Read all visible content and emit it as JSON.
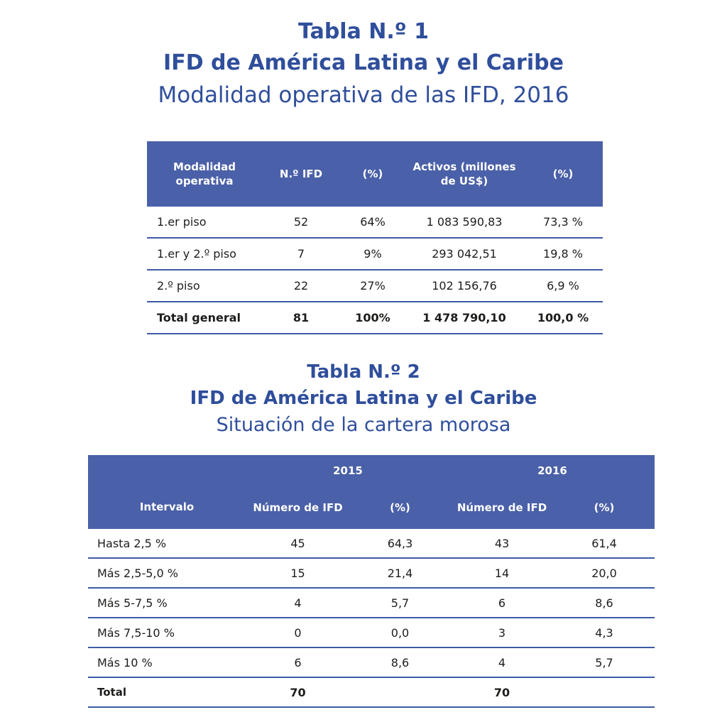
{
  "table1": {
    "number": "Tabla N.º 1",
    "title": "IFD de América Latina y el Caribe",
    "subtitle": "Modalidad operativa de las IFD, 2016",
    "headers": [
      "Modalidad operativa",
      "N.º IFD",
      "(%)",
      "Activos (millones de US$)",
      "(%)"
    ],
    "rows": [
      [
        "1.er piso",
        "52",
        "64%",
        "1 083 590,83",
        "73,3 %"
      ],
      [
        "1.er y 2.º piso",
        "7",
        "9%",
        "293 042,51",
        "19,8 %"
      ],
      [
        "2.º piso",
        "22",
        "27%",
        "102 156,76",
        "6,9 %"
      ],
      [
        "Total general",
        "81",
        "100%",
        "1 478 790,10",
        "100,0 %"
      ]
    ]
  },
  "table2": {
    "number": "Tabla N.º 2",
    "title": "IFD de América Latina y el Caribe",
    "subtitle": "Situación de la cartera morosa",
    "header_intervalo": "Intervalo",
    "years": [
      "2015",
      "2016"
    ],
    "subheaders": [
      "Número de IFD",
      "(%)",
      "Número de IFD",
      "(%)"
    ],
    "rows": [
      [
        "Hasta 2,5 %",
        "45",
        "64,3",
        "43",
        "61,4"
      ],
      [
        "Más 2,5-5,0 %",
        "15",
        "21,4",
        "14",
        "20,0"
      ],
      [
        "Más 5-7,5 %",
        "4",
        "5,7",
        "6",
        "8,6"
      ],
      [
        "Más 7,5-10 %",
        "0",
        "0,0",
        "3",
        "4,3"
      ],
      [
        "Más 10 %",
        "6",
        "8,6",
        "4",
        "5,7"
      ],
      [
        "Total",
        "70",
        "",
        "70",
        ""
      ]
    ]
  }
}
